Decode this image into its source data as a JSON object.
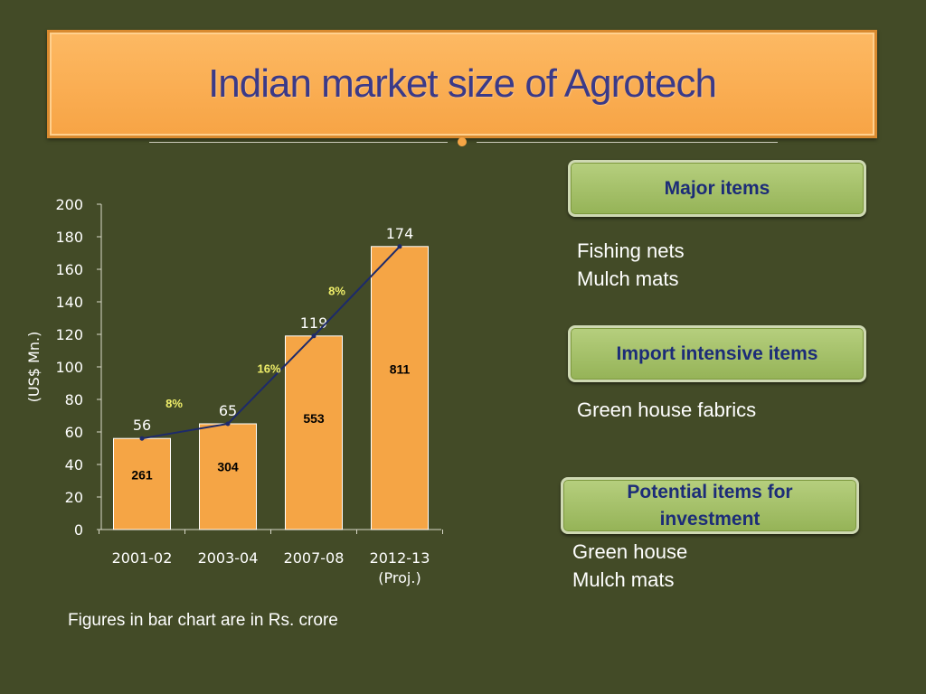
{
  "title": "Indian market size of Agrotech",
  "chart_data": {
    "type": "bar",
    "title": "",
    "xlabel": "",
    "ylabel": "(US$ Mn.)",
    "ylim": [
      0,
      200
    ],
    "yticks": [
      "0",
      "20",
      "40",
      "60",
      "80",
      "100",
      "120",
      "140",
      "160",
      "180",
      "200"
    ],
    "categories": [
      "2001-02",
      "2003-04",
      "2007-08",
      "2012-13"
    ],
    "category_sublabels": [
      "",
      "",
      "",
      "(Proj.)"
    ],
    "series": [
      {
        "values": [
          56,
          65,
          119,
          174
        ]
      }
    ],
    "inner_labels": [
      "261",
      "304",
      "553",
      "811"
    ],
    "growth_labels": [
      "8%",
      "16%",
      "8%"
    ],
    "trend_line": true,
    "bar_color": "#f5a545",
    "line_color": "#1d2a6b",
    "growth_color": "#f0ef6a"
  },
  "panels": [
    {
      "heading": "Major items",
      "items": [
        "Fishing nets",
        "Mulch mats"
      ]
    },
    {
      "heading": "Import intensive items",
      "items": [
        "Green house fabrics"
      ]
    },
    {
      "heading": "Potential items for investment",
      "items": [
        "Green house",
        "Mulch mats"
      ]
    }
  ],
  "footnote": "Figures in bar chart  are in Rs. crore"
}
